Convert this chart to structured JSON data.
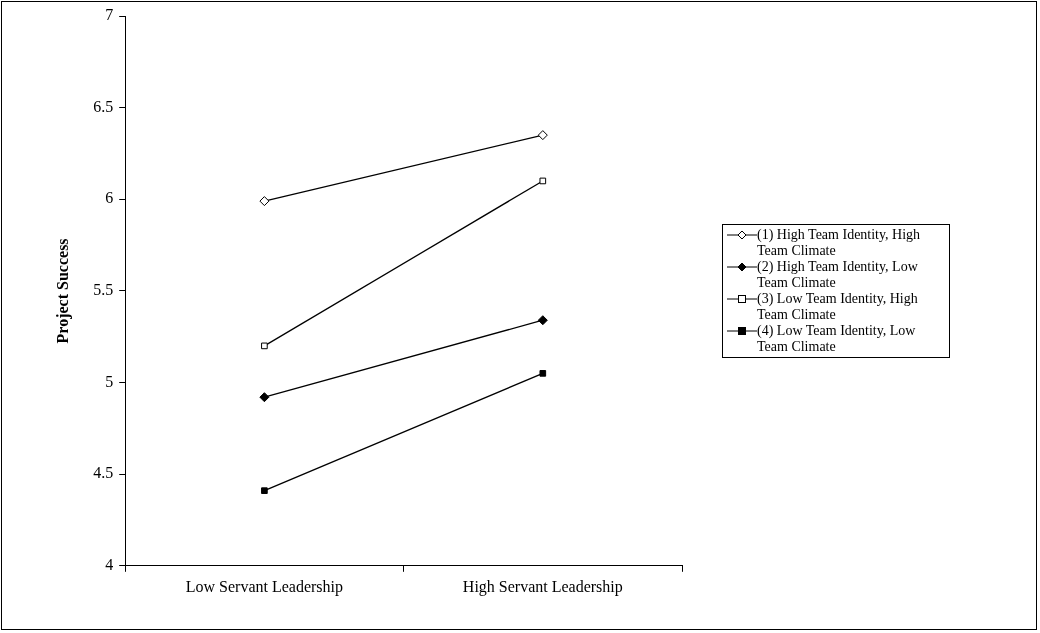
{
  "chart_data": {
    "type": "line",
    "ylabel": "Project Success",
    "categories": [
      "Low Servant Leadership",
      "High Servant Leadership"
    ],
    "series": [
      {
        "name": "(1) High Team Identity, High Team Climate",
        "color": "#000000",
        "marker": "diamond",
        "colors": [
          "#ffffff",
          "#ffffff"
        ],
        "values": [
          5.99,
          6.35
        ]
      },
      {
        "name": "(2) High Team Identity, Low Team Climate",
        "color": "#000000",
        "marker": "diamond",
        "values": [
          4.92,
          5.34
        ]
      },
      {
        "name": "(3) Low Team Identity, High Team Climate",
        "color": "#000000",
        "marker": "square",
        "colors": [
          "#ffffff",
          "#ffffff"
        ],
        "values": [
          5.2,
          6.1
        ]
      },
      {
        "name": "(4) Low Team Identity, Low Team Climate",
        "color": "#000000",
        "marker": "square",
        "values": [
          4.41,
          5.05
        ]
      }
    ],
    "ylim": [
      4,
      7
    ],
    "yticks": [
      4,
      4.5,
      5,
      5.5,
      6,
      6.5,
      7
    ],
    "grid": false,
    "legend": "right",
    "line_style": "solid"
  }
}
